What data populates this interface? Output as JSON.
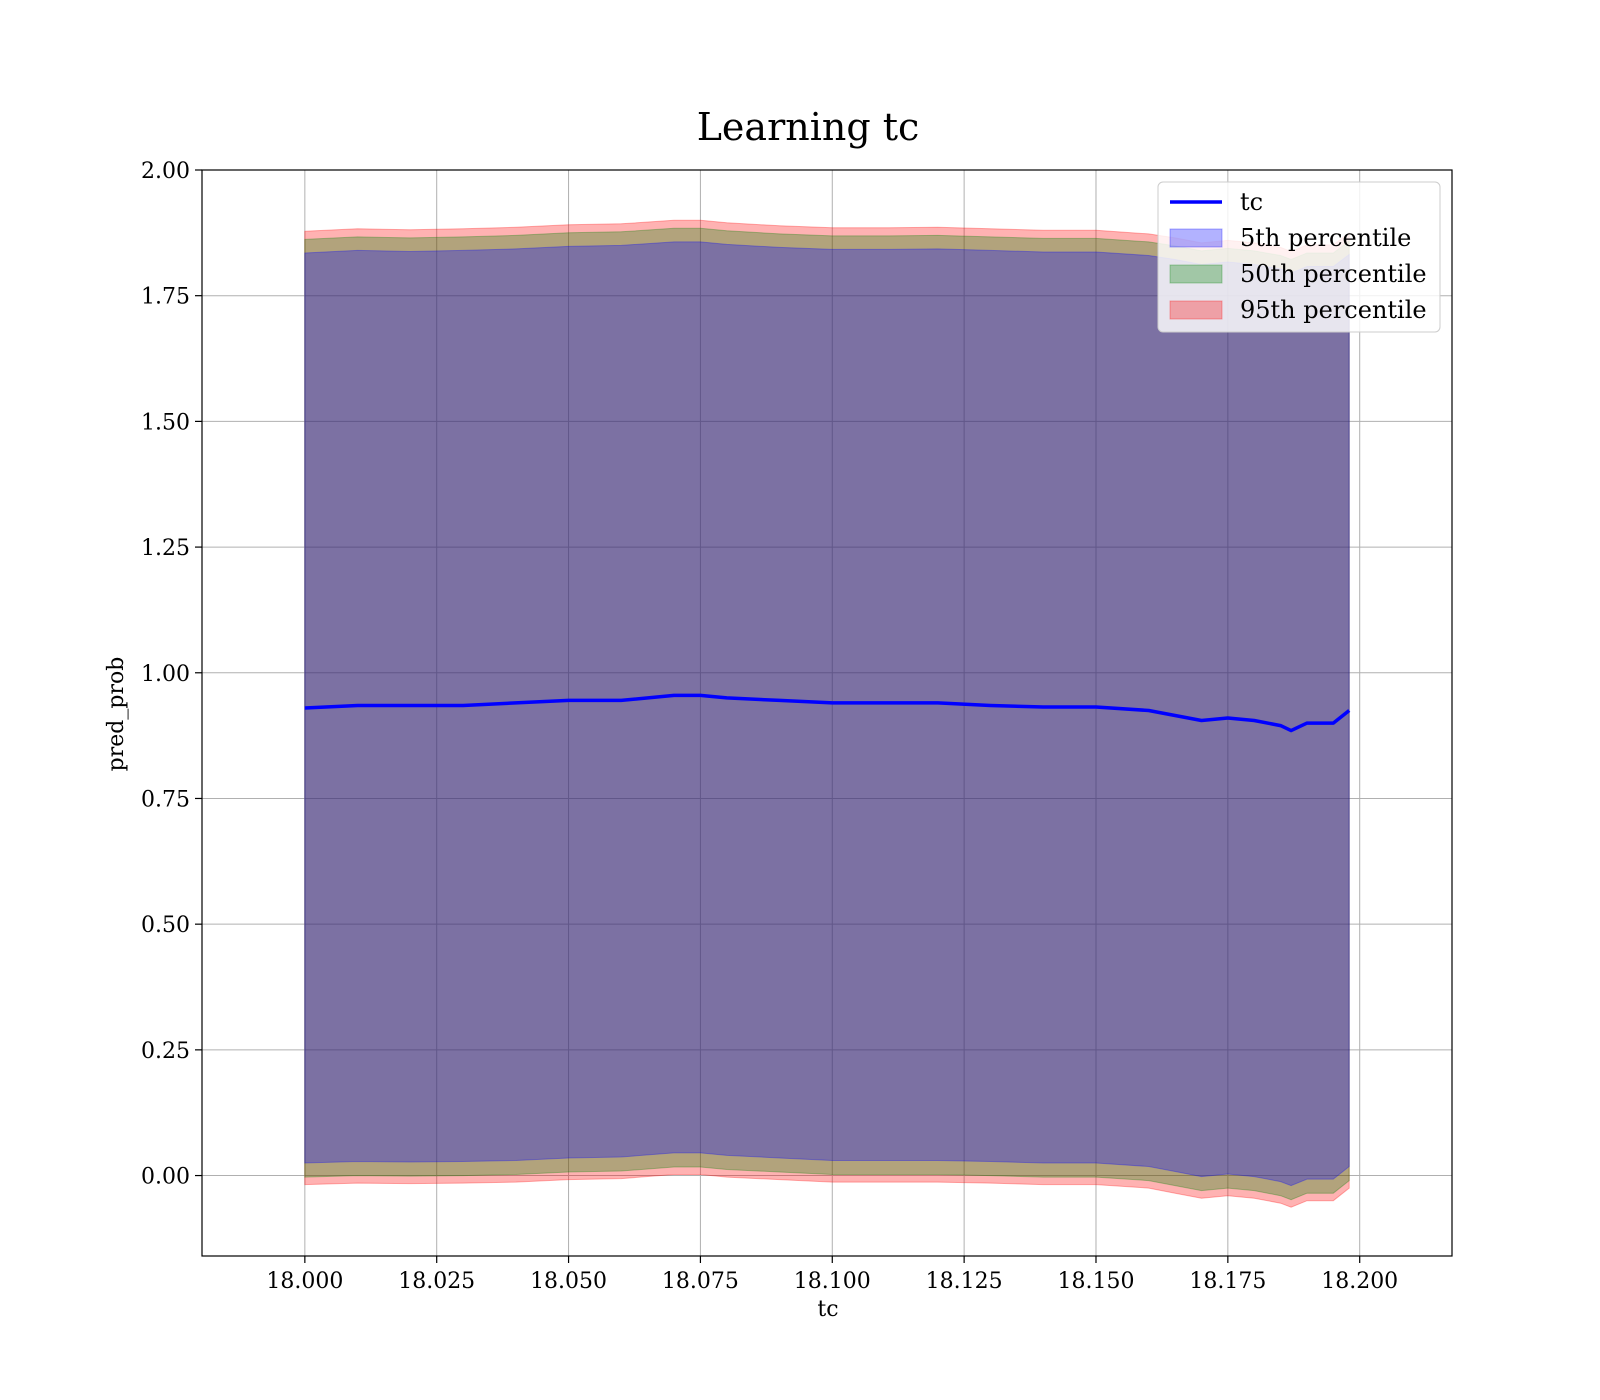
{
  "chart_data": {
    "type": "area",
    "title": "Learning tc",
    "xlabel": "tc",
    "ylabel": "pred_prob",
    "xlim": [
      17.9805,
      18.2175
    ],
    "ylim": [
      -0.16,
      2.0
    ],
    "xticks": [
      18.0,
      18.025,
      18.05,
      18.075,
      18.1,
      18.125,
      18.15,
      18.175,
      18.2
    ],
    "xtick_labels": [
      "18.000",
      "18.025",
      "18.050",
      "18.075",
      "18.100",
      "18.125",
      "18.150",
      "18.175",
      "18.200"
    ],
    "yticks": [
      0.0,
      0.25,
      0.5,
      0.75,
      1.0,
      1.25,
      1.5,
      1.75,
      2.0
    ],
    "ytick_labels": [
      "0.00",
      "0.25",
      "0.50",
      "0.75",
      "1.00",
      "1.25",
      "1.50",
      "1.75",
      "2.00"
    ],
    "grid": true,
    "legend_position": "top-right",
    "legend": [
      {
        "label": "tc",
        "kind": "line",
        "color": "#0000ff"
      },
      {
        "label": "5th percentile",
        "kind": "patch",
        "color": "#0000ff"
      },
      {
        "label": "50th percentile",
        "kind": "patch",
        "color": "#008000"
      },
      {
        "label": "95th percentile",
        "kind": "patch",
        "color": "#ff0000"
      }
    ],
    "x": [
      18.0,
      18.01,
      18.02,
      18.03,
      18.04,
      18.05,
      18.06,
      18.07,
      18.075,
      18.08,
      18.09,
      18.1,
      18.11,
      18.12,
      18.13,
      18.14,
      18.15,
      18.16,
      18.165,
      18.17,
      18.175,
      18.18,
      18.185,
      18.187,
      18.19,
      18.195,
      18.198
    ],
    "series": [
      {
        "name": "tc",
        "kind": "line",
        "color": "#0000ff",
        "values": [
          0.93,
          0.935,
          0.935,
          0.935,
          0.94,
          0.945,
          0.945,
          0.955,
          0.955,
          0.95,
          0.945,
          0.94,
          0.94,
          0.94,
          0.935,
          0.932,
          0.932,
          0.925,
          0.915,
          0.905,
          0.91,
          0.905,
          0.895,
          0.885,
          0.9,
          0.9,
          0.925
        ]
      },
      {
        "name": "5th percentile",
        "kind": "band",
        "color": "#0000ff",
        "lower": [
          0.025,
          0.028,
          0.027,
          0.028,
          0.03,
          0.035,
          0.037,
          0.045,
          0.045,
          0.04,
          0.035,
          0.03,
          0.03,
          0.03,
          0.028,
          0.025,
          0.025,
          0.018,
          0.008,
          -0.002,
          0.003,
          -0.002,
          -0.012,
          -0.02,
          -0.007,
          -0.007,
          0.018
        ],
        "upper": [
          1.835,
          1.84,
          1.838,
          1.84,
          1.843,
          1.848,
          1.85,
          1.857,
          1.857,
          1.852,
          1.846,
          1.842,
          1.842,
          1.843,
          1.84,
          1.837,
          1.837,
          1.83,
          1.822,
          1.812,
          1.817,
          1.812,
          1.803,
          1.795,
          1.808,
          1.808,
          1.832
        ]
      },
      {
        "name": "50th percentile",
        "kind": "band",
        "color": "#008000",
        "lower": [
          -0.003,
          0.0,
          -0.001,
          0.0,
          0.002,
          0.007,
          0.009,
          0.017,
          0.017,
          0.012,
          0.007,
          0.002,
          0.002,
          0.002,
          0.0,
          -0.003,
          -0.003,
          -0.01,
          -0.02,
          -0.03,
          -0.025,
          -0.03,
          -0.04,
          -0.048,
          -0.035,
          -0.035,
          -0.01
        ],
        "upper": [
          1.862,
          1.867,
          1.865,
          1.867,
          1.87,
          1.875,
          1.877,
          1.884,
          1.884,
          1.879,
          1.873,
          1.869,
          1.869,
          1.87,
          1.867,
          1.864,
          1.864,
          1.857,
          1.849,
          1.839,
          1.844,
          1.839,
          1.83,
          1.822,
          1.835,
          1.835,
          1.859
        ]
      },
      {
        "name": "95th percentile",
        "kind": "band",
        "color": "#ff0000",
        "lower": [
          -0.018,
          -0.015,
          -0.016,
          -0.015,
          -0.013,
          -0.008,
          -0.006,
          0.002,
          0.002,
          -0.003,
          -0.008,
          -0.013,
          -0.013,
          -0.013,
          -0.015,
          -0.018,
          -0.018,
          -0.025,
          -0.035,
          -0.045,
          -0.04,
          -0.045,
          -0.055,
          -0.063,
          -0.05,
          -0.05,
          -0.025
        ],
        "upper": [
          1.878,
          1.883,
          1.881,
          1.883,
          1.886,
          1.891,
          1.893,
          1.9,
          1.9,
          1.895,
          1.889,
          1.885,
          1.885,
          1.886,
          1.883,
          1.88,
          1.88,
          1.873,
          1.865,
          1.855,
          1.86,
          1.855,
          1.846,
          1.838,
          1.851,
          1.851,
          1.875
        ]
      }
    ]
  }
}
